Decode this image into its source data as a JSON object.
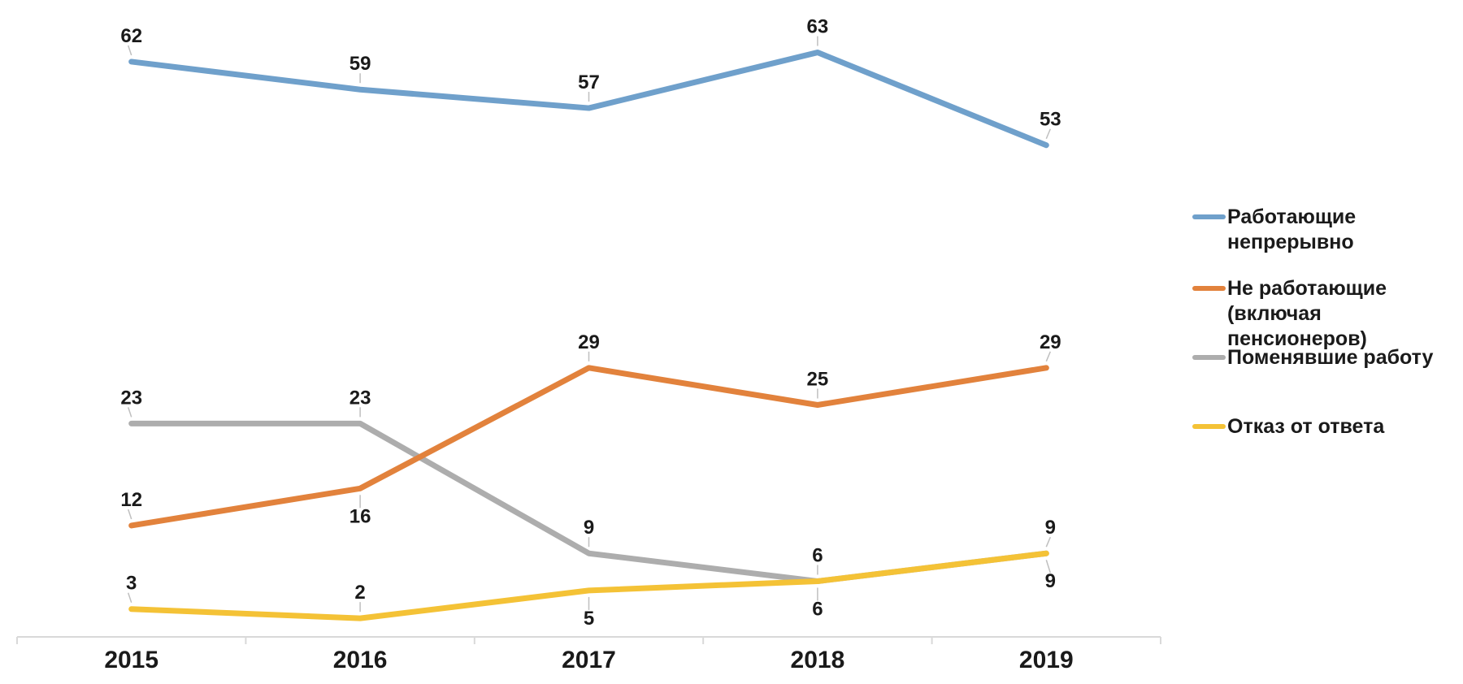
{
  "chart_data": {
    "type": "line",
    "title": "",
    "xlabel": "",
    "ylabel": "",
    "categories": [
      "2015",
      "2016",
      "2017",
      "2018",
      "2019"
    ],
    "series": [
      {
        "id": "working-continuously",
        "name": "Работающие непрерывно",
        "values": [
          62,
          59,
          57,
          63,
          53
        ],
        "color": "#6FA0CB",
        "label_sides": [
          "above",
          "above",
          "above",
          "above",
          "above"
        ]
      },
      {
        "id": "not-working-incl-pensioners",
        "name": "Не работающие (включая пенсионеров)",
        "values": [
          12,
          16,
          29,
          25,
          29
        ],
        "color": "#E2823C",
        "label_sides": [
          "above",
          "below",
          "above",
          "above",
          "above"
        ]
      },
      {
        "id": "changed-jobs",
        "name": "Поменявшие работу",
        "values": [
          23,
          23,
          9,
          6,
          9
        ],
        "color": "#ADADAD",
        "label_sides": [
          "above",
          "above",
          "above",
          "above",
          "above"
        ]
      },
      {
        "id": "refused-to-answer",
        "name": "Отказ от ответа",
        "values": [
          3,
          2,
          5,
          6,
          9
        ],
        "color": "#F4C236",
        "label_sides": [
          "above",
          "above",
          "below",
          "below",
          "below"
        ]
      }
    ],
    "legend": {
      "position": "right",
      "items": [
        {
          "series": 0,
          "label_lines": [
            "Работающие",
            "непрерывно"
          ]
        },
        {
          "series": 1,
          "label_lines": [
            "Не работающие",
            "(включая",
            "пенсионеров)"
          ]
        },
        {
          "series": 2,
          "label_lines": [
            "Поменявшие работу"
          ]
        },
        {
          "series": 3,
          "label_lines": [
            "Отказ от ответа"
          ]
        }
      ]
    },
    "ylim": [
      0,
      68.7
    ],
    "grid": false,
    "data_labels": true,
    "colors": {
      "axis": "#D9D9D9",
      "tick": "#D9D9D9",
      "leader_line": "#BFBFBF",
      "data_label_text": "#1a1a1a",
      "axis_label_text": "#1a1a1a",
      "legend_text": "#1a1a1a",
      "background": "#ffffff"
    }
  }
}
